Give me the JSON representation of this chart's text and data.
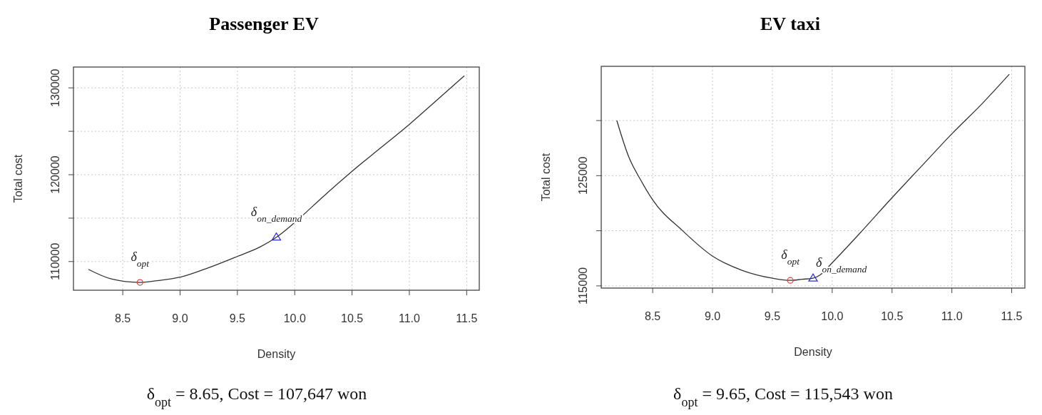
{
  "chart_data": [
    {
      "type": "line",
      "title": "Passenger EV",
      "xlabel": "Density",
      "ylabel": "Total cost",
      "xlim": [
        8.07,
        11.61
      ],
      "xticks": [
        {
          "value": 8.5,
          "label": "8.5"
        },
        {
          "value": 9,
          "label": "9.0"
        },
        {
          "value": 9.5,
          "label": "9.5"
        },
        {
          "value": 10,
          "label": "10.0"
        },
        {
          "value": 10.5,
          "label": "10.5"
        },
        {
          "value": 11,
          "label": "11.0"
        },
        {
          "value": 11.5,
          "label": "11.5"
        }
      ],
      "ylim": [
        106700,
        132400
      ],
      "yticks": [
        110000,
        {
          "value": 115000,
          "label": null
        },
        120000,
        {
          "value": 125000,
          "label": null
        },
        130000
      ],
      "grid": true,
      "series": [
        {
          "type": "line",
          "color": "#333333",
          "marker": "none",
          "x": [
            8.2,
            8.4,
            8.65,
            8.8,
            9.0,
            9.25,
            9.5,
            9.7,
            9.84,
            10.0,
            10.25,
            10.5,
            10.75,
            11.0,
            11.25,
            11.48
          ],
          "values": [
            109100,
            108000,
            107600,
            107800,
            108200,
            109300,
            110600,
            111700,
            112800,
            114500,
            117500,
            120400,
            123100,
            125800,
            128700,
            131400
          ]
        },
        {
          "type": "scatter",
          "color": "#e0403c",
          "marker": "circle",
          "x": [
            8.65
          ],
          "values": [
            107600
          ]
        },
        {
          "type": "scatter",
          "color": "#2c2cd8",
          "marker": "triangle",
          "x": [
            9.84
          ],
          "values": [
            112800
          ]
        }
      ],
      "annotations": [
        {
          "text": "δ$_{opt}$",
          "x": 8.65,
          "y": 107600
        },
        {
          "text": "δ$_{on_demand}$",
          "x": 9.84,
          "y": 112800
        },
        "δ$_{opt}$ = 8.65, Cost = 107,647 won"
      ]
    },
    {
      "type": "line",
      "title": "EV taxi",
      "xlabel": "Density",
      "ylabel": "Total cost",
      "xlim": [
        8.07,
        11.61
      ],
      "xticks": [
        {
          "value": 8.5,
          "label": "8.5"
        },
        {
          "value": 9,
          "label": "9.0"
        },
        {
          "value": 9.5,
          "label": "9.5"
        },
        {
          "value": 10,
          "label": "10.0"
        },
        {
          "value": 10.5,
          "label": "10.5"
        },
        {
          "value": 11,
          "label": "11.0"
        },
        {
          "value": 11.5,
          "label": "11.5"
        }
      ],
      "ylim": [
        114800,
        134920
      ],
      "yticks": [
        115000,
        {
          "value": 120000,
          "label": null
        },
        125000,
        {
          "value": 130000,
          "label": null
        }
      ],
      "grid": true,
      "series": [
        {
          "type": "line",
          "color": "#333333",
          "marker": "none",
          "x": [
            8.2,
            8.3,
            8.4,
            8.5,
            8.75,
            9.0,
            9.25,
            9.5,
            9.65,
            9.75,
            9.84,
            9.9,
            10.0,
            10.25,
            10.5,
            10.75,
            11.0,
            11.25,
            11.48
          ],
          "values": [
            130000,
            126700,
            124600,
            122800,
            120000,
            117700,
            116400,
            115700,
            115500,
            115600,
            115700,
            116000,
            117100,
            120000,
            123000,
            125900,
            128800,
            131500,
            134200
          ]
        },
        {
          "type": "scatter",
          "color": "#e0403c",
          "marker": "circle",
          "x": [
            9.65
          ],
          "values": [
            115500
          ]
        },
        {
          "type": "scatter",
          "color": "#2c2cd8",
          "marker": "triangle",
          "x": [
            9.84
          ],
          "values": [
            115700
          ]
        }
      ],
      "annotations": [
        {
          "text": "δ$_{opt}$",
          "x": 9.65,
          "y": 115500
        },
        {
          "text": "δ$_{on_demand}$",
          "x": 9.84,
          "y": 115700
        },
        "δ$_{opt}$ = 9.65, Cost = 115,543 won"
      ]
    }
  ]
}
